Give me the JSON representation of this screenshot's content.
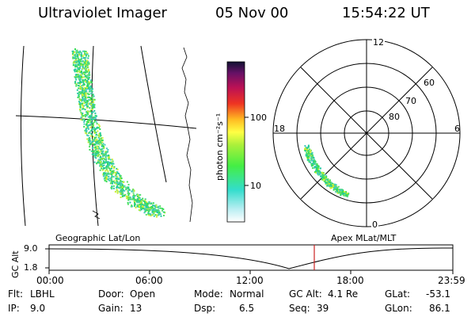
{
  "header": {
    "instrument": "Ultraviolet Imager",
    "date": "05 Nov 00",
    "time": "15:54:22 UT"
  },
  "colorbar": {
    "unit_label": "photon cm⁻²s⁻¹",
    "ticks": [
      "100",
      "10"
    ]
  },
  "polar_plot": {
    "mlt_labels": {
      "top": "12",
      "left": "18",
      "right": "6",
      "bottom": "0"
    },
    "lat_labels": [
      "60",
      "70",
      "80"
    ]
  },
  "panels": {
    "geo_label": "Geographic Lat/Lon",
    "apex_label": "Apex MLat/MLT"
  },
  "altitude_plot": {
    "ylabel": "GC Alt",
    "y_ticks": [
      "9.0",
      "1.8"
    ],
    "x_ticks": [
      "00:00",
      "06:00",
      "12:00",
      "18:00",
      "23:59"
    ],
    "current_time_marker": "15:54"
  },
  "info": {
    "filter": {
      "label": "Flt:",
      "value": "LBHL"
    },
    "ip": {
      "label": "IP:",
      "value": "9.0"
    },
    "door": {
      "label": "Door:",
      "value": "Open"
    },
    "gain": {
      "label": "Gain:",
      "value": "13"
    },
    "mode": {
      "label": "Mode:",
      "value": "Normal"
    },
    "dsp": {
      "label": "Dsp:",
      "value": "6.5"
    },
    "gc_alt": {
      "label": "GC Alt:",
      "value": "4.1 Re"
    },
    "seq": {
      "label": "Seq:",
      "value": "39"
    },
    "glat": {
      "label": "GLat:",
      "value": "-53.1"
    },
    "glon": {
      "label": "GLon:",
      "value": "86.1"
    }
  },
  "colors": {
    "aurora_green": "#33dd55",
    "aurora_teal": "#44ccbb",
    "aurora_yellow": "#ccee33",
    "marker_red": "#cc2222"
  }
}
